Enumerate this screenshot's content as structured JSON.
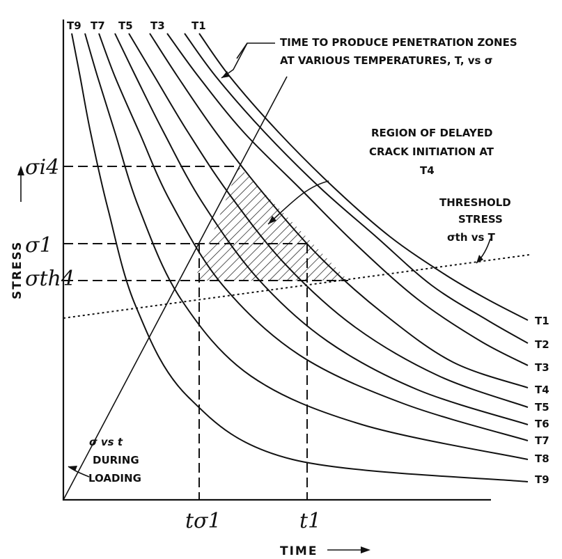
{
  "axes": {
    "y_label": "STRESS",
    "x_label": "TIME"
  },
  "curve_labels": {
    "top": [
      "T9",
      "T7",
      "T5",
      "T3",
      "T1"
    ],
    "right": [
      "T1",
      "T2",
      "T3",
      "T4",
      "T5",
      "T6",
      "T7",
      "T8",
      "T9"
    ]
  },
  "annotations": {
    "penetration_line1": "TIME TO PRODUCE PENETRATION ZONES",
    "penetration_line2": "AT VARIOUS TEMPERATURES, T, vs σ",
    "region_line1": "REGION OF DELAYED",
    "region_line2": "CRACK INITIATION AT",
    "region_line3": "T4",
    "threshold_line1": "THRESHOLD",
    "threshold_line2": "STRESS",
    "threshold_line3": "σth vs T",
    "loading_line1": "σ vs t",
    "loading_line2": "DURING",
    "loading_line3": "LOADING"
  },
  "stress_levels": {
    "sigma_i4": "σi4",
    "sigma_1": "σ1",
    "sigma_th4": "σth4"
  },
  "time_marks": {
    "t_sigma1": "tσ1",
    "t1": "t1"
  },
  "colors": {
    "ink": "#111111",
    "background": "#ffffff"
  }
}
